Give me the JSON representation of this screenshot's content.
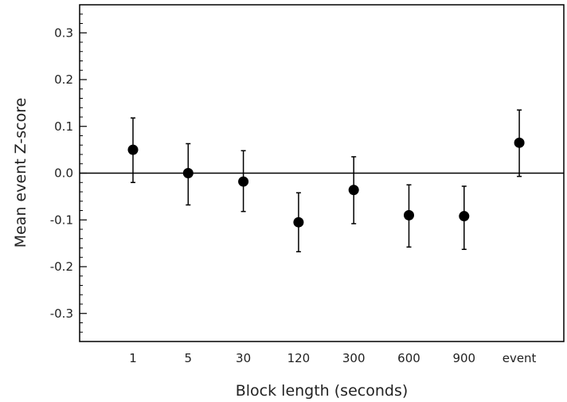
{
  "chart_data": {
    "type": "scatter",
    "title": "",
    "xlabel": "Block length (seconds)",
    "ylabel": "Mean event Z-score",
    "categories": [
      "1",
      "5",
      "30",
      "120",
      "300",
      "600",
      "900",
      "event"
    ],
    "values": [
      0.05,
      0.0,
      -0.018,
      -0.105,
      -0.036,
      -0.09,
      -0.092,
      0.065
    ],
    "error_low": [
      -0.02,
      -0.068,
      -0.082,
      -0.168,
      -0.108,
      -0.158,
      -0.163,
      -0.007
    ],
    "error_high": [
      0.118,
      0.063,
      0.048,
      -0.042,
      0.035,
      -0.025,
      -0.028,
      0.135
    ],
    "ylim": [
      -0.36,
      0.36
    ],
    "yticks": [
      -0.3,
      -0.2,
      -0.1,
      0.0,
      0.1,
      0.2,
      0.3
    ],
    "ytick_labels": [
      "-0.3",
      "-0.2",
      "-0.1",
      "0.0",
      "0.1",
      "0.2",
      "0.3"
    ],
    "reference_line": 0.0,
    "grid": false,
    "legend": "none",
    "marker_color": "#000000"
  }
}
